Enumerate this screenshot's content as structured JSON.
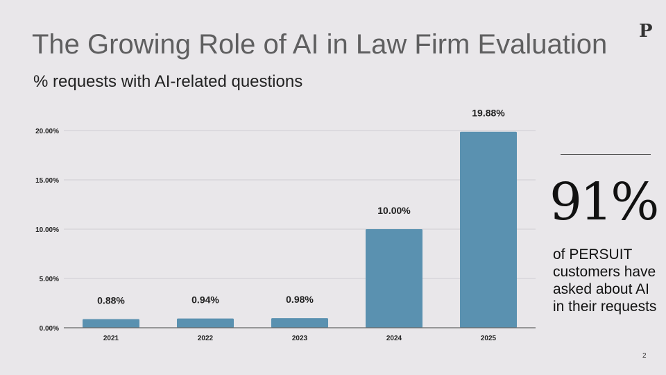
{
  "slide": {
    "title": "The Growing Role of AI in Law Firm Evaluation",
    "subtitle": "% requests with AI-related questions",
    "logo": "P",
    "stat_value": "91%",
    "stat_description": "of PERSUIT customers have asked about AI in their requests",
    "page_number": "2"
  },
  "chart_data": {
    "type": "bar",
    "categories": [
      "2021",
      "2022",
      "2023",
      "2024",
      "2025"
    ],
    "values": [
      0.88,
      0.94,
      0.98,
      10.0,
      19.88
    ],
    "data_labels": [
      "0.88%",
      "0.94%",
      "0.98%",
      "10.00%",
      "19.88%"
    ],
    "title": "",
    "xlabel": "",
    "ylabel": "",
    "ylim": [
      0,
      20
    ],
    "yticks": [
      0,
      5,
      10,
      15,
      20
    ],
    "ytick_labels": [
      "0.00%",
      "5.00%",
      "10.00%",
      "15.00%",
      "20.00%"
    ],
    "grid": true,
    "legend": "none",
    "bar_color": "#5a91b0"
  }
}
